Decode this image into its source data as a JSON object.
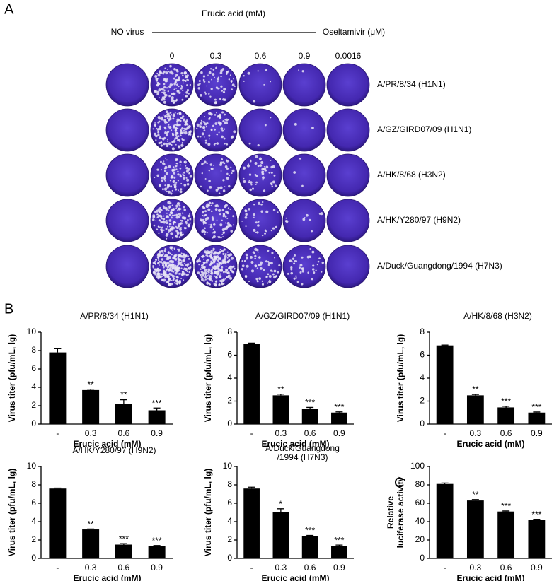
{
  "panel_a": {
    "panel": "A",
    "no_virus": "NO virus",
    "treatment": "Erucic acid (mM)",
    "control": "Oseltamivir (μM)",
    "columns": [
      "0",
      "0.3",
      "0.6",
      "0.9",
      "0.0016"
    ],
    "rows": [
      "A/PR/8/34 (H1N1)",
      "A/GZ/GIRD07/09 (H1N1)",
      "A/HK/8/68 (H3N2)",
      "A/HK/Y280/97 (H9N2)",
      "A/Duck/Guangdong/1994 (H7N3)"
    ]
  },
  "chart_data": [
    {
      "type": "bar",
      "panel": "B",
      "title": "A/PR/8/34 (H1N1)",
      "ylabel": "Virus titer (pfu/mL, lg)",
      "xlabel": "Erucic acid (mM)",
      "categories": [
        "-",
        "0.3",
        "0.6",
        "0.9"
      ],
      "values": [
        7.8,
        3.7,
        2.2,
        1.5
      ],
      "errors": [
        0.4,
        0.1,
        0.45,
        0.25
      ],
      "annotations": [
        null,
        "**",
        "**",
        "***"
      ],
      "color": "#000000",
      "ylim": [
        0,
        10
      ],
      "yticks": [
        0,
        2,
        4,
        6,
        8,
        10
      ]
    },
    {
      "type": "bar",
      "title": "A/GZ/GIRD07/09 (H1N1)",
      "ylabel": "Virus titer (pfu/mL, lg)",
      "xlabel": "Erucic acid (mM)",
      "categories": [
        "-",
        "0.3",
        "0.6",
        "0.9"
      ],
      "values": [
        7.0,
        2.5,
        1.3,
        1.0
      ],
      "errors": [
        0.05,
        0.1,
        0.15,
        0.06
      ],
      "annotations": [
        null,
        "**",
        "***",
        "***"
      ],
      "color": "#000000",
      "ylim": [
        0,
        8
      ],
      "yticks": [
        0,
        2,
        4,
        6,
        8
      ]
    },
    {
      "type": "bar",
      "title": "A/HK/8/68 (H3N2)",
      "ylabel": "Virus titer (pfu/mL, lg)",
      "xlabel": "Erucic acid (mM)",
      "categories": [
        "-",
        "0.3",
        "0.6",
        "0.9"
      ],
      "values": [
        6.85,
        2.5,
        1.45,
        1.0
      ],
      "errors": [
        0.03,
        0.08,
        0.1,
        0.05
      ],
      "annotations": [
        null,
        "**",
        "***",
        "***"
      ],
      "color": "#000000",
      "ylim": [
        0,
        8
      ],
      "yticks": [
        0,
        2,
        4,
        6,
        8
      ]
    },
    {
      "type": "bar",
      "title": "A/HK/Y280/97 (H9N2)",
      "ylabel": "Virus titer (pfu/mL, lg)",
      "xlabel": "Erucic acid (mM)",
      "categories": [
        "-",
        "0.3",
        "0.6",
        "0.9"
      ],
      "values": [
        7.6,
        3.15,
        1.5,
        1.35
      ],
      "errors": [
        0.05,
        0.05,
        0.1,
        0.05
      ],
      "annotations": [
        null,
        "**",
        "***",
        "***"
      ],
      "color": "#000000",
      "ylim": [
        0,
        10
      ],
      "yticks": [
        0,
        2,
        4,
        6,
        8,
        10
      ]
    },
    {
      "type": "bar",
      "title": [
        "A/Duck/Guangdong",
        "/1994 (H7N3)"
      ],
      "ylabel": "Virus titer (pfu/mL, lg)",
      "xlabel": "Erucic acid (mM)",
      "categories": [
        "-",
        "0.3",
        "0.6",
        "0.9"
      ],
      "values": [
        7.6,
        5.0,
        2.45,
        1.35
      ],
      "errors": [
        0.15,
        0.4,
        0.05,
        0.1
      ],
      "annotations": [
        null,
        "*",
        "***",
        "***"
      ],
      "color": "#000000",
      "ylim": [
        0,
        10
      ],
      "yticks": [
        0,
        2,
        4,
        6,
        8,
        10
      ]
    },
    {
      "type": "bar",
      "panel": "C",
      "ylabel": [
        "Relative",
        "luciferase activity"
      ],
      "xlabel": "Erucic acid (mM)",
      "categories": [
        "-",
        "0.3",
        "0.6",
        "0.9"
      ],
      "values": [
        81,
        63,
        51,
        42
      ],
      "errors": [
        1,
        1,
        0.6,
        0.6
      ],
      "annotations": [
        null,
        "**",
        "***",
        "***"
      ],
      "color": "#000000",
      "ylim": [
        0,
        100
      ],
      "yticks": [
        0,
        20,
        40,
        60,
        80,
        100
      ]
    }
  ]
}
